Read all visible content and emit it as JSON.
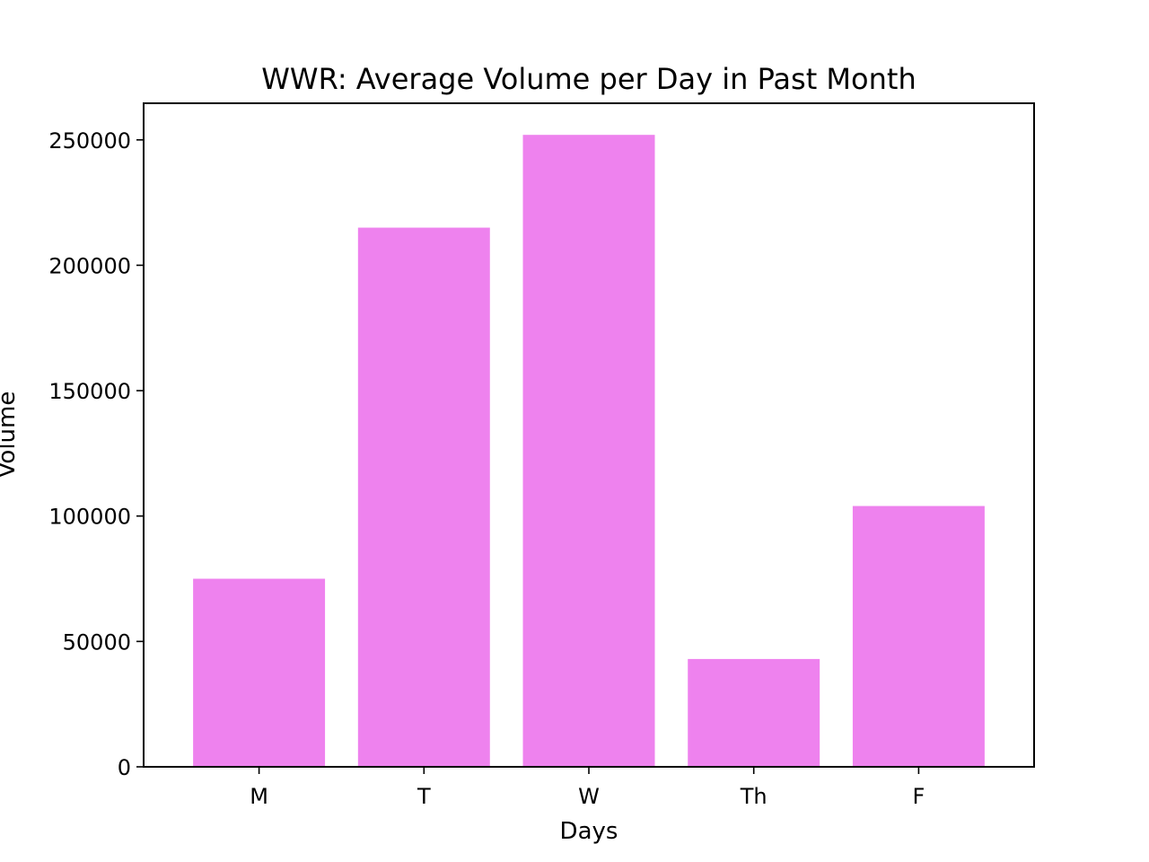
{
  "chart_data": {
    "type": "bar",
    "title": "WWR: Average Volume per Day in Past Month",
    "xlabel": "Days",
    "ylabel": "Volume",
    "categories": [
      "M",
      "T",
      "W",
      "Th",
      "F"
    ],
    "values": [
      75000,
      215000,
      252000,
      43000,
      104000
    ],
    "ylim": [
      0,
      264600
    ],
    "yticks": [
      0,
      50000,
      100000,
      150000,
      200000,
      250000
    ],
    "bar_color": "#ee82ee",
    "grid": false,
    "legend": "none"
  }
}
